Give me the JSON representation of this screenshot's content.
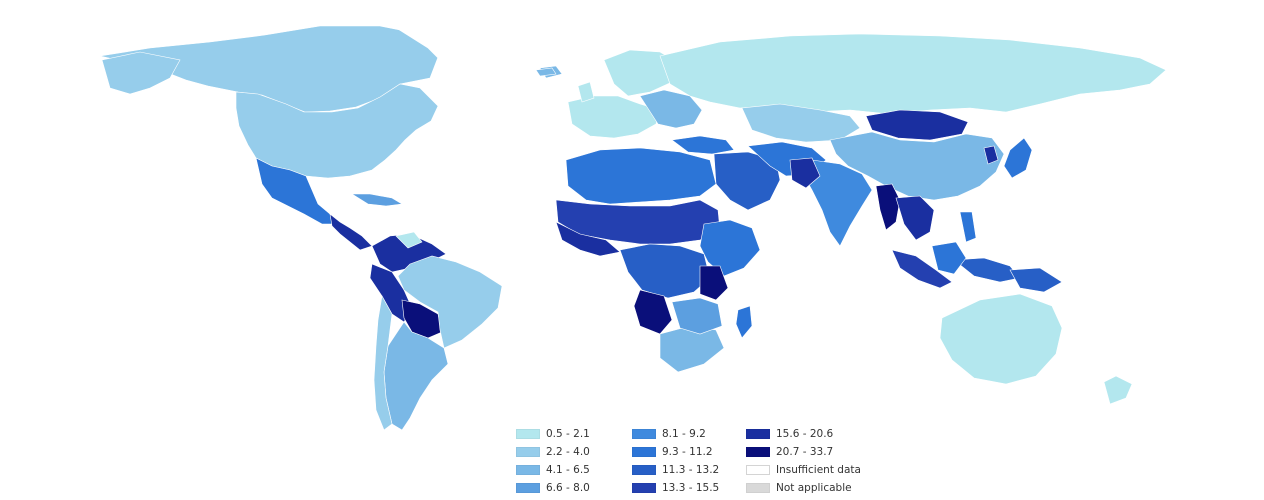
{
  "legend": {
    "col1": [
      {
        "label": "0.5 - 2.1",
        "color": "#b3e7ee"
      },
      {
        "label": "2.2 - 4.0",
        "color": "#96cdeb"
      },
      {
        "label": "4.1 - 6.5",
        "color": "#7ab8e6"
      },
      {
        "label": "6.6 - 8.0",
        "color": "#5c9fe0"
      }
    ],
    "col2": [
      {
        "label": "8.1 - 9.2",
        "color": "#3f8ade"
      },
      {
        "label": "9.3 - 11.2",
        "color": "#2c75d7"
      },
      {
        "label": "11.3 - 13.2",
        "color": "#275fc6"
      },
      {
        "label": "13.3 - 15.5",
        "color": "#2440b0"
      }
    ],
    "col3": [
      {
        "label": "15.6 - 20.6",
        "color": "#1a2fa0"
      },
      {
        "label": "20.7 - 33.7",
        "color": "#0a0f7a"
      },
      {
        "label": "Insufficient data",
        "color": "#ffffff"
      },
      {
        "label": "Not applicable",
        "color": "#d9d9d9"
      }
    ]
  },
  "map_colors": {
    "background": "#ffffff",
    "land_light": "#b3e7ee",
    "land_mid": "#96cdeb",
    "land_blue": "#5c9fe0",
    "land_dark": "#2c75d7",
    "land_darker": "#1a2fa0",
    "land_darkest": "#0a0f7a",
    "greenland": "#ffffff"
  }
}
